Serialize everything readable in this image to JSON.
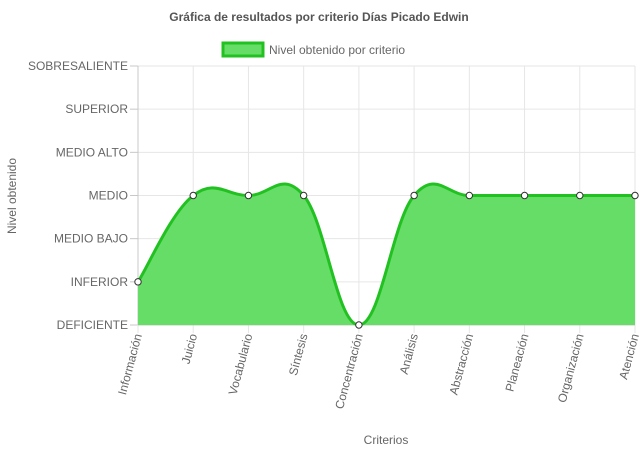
{
  "chart_data": {
    "type": "area",
    "title": "Gráfica de resultados por criterio Días Picado Edwin",
    "xlabel": "Criterios",
    "ylabel": "Nivel obtenido",
    "categories": [
      "Información",
      "Juicio",
      "Vocabulario",
      "Síntesis",
      "Concentración",
      "Análisis",
      "Abstracción",
      "Planeación",
      "Organización",
      "Atención"
    ],
    "y_levels": [
      "DEFICIENTE",
      "INFERIOR",
      "MEDIO BAJO",
      "MEDIO",
      "MEDIO ALTO",
      "SUPERIOR",
      "SOBRESALIENTE"
    ],
    "ylim": [
      0,
      6
    ],
    "grid": true,
    "legend_position": "top",
    "series": [
      {
        "name": "Nivel obtenido por criterio",
        "values": [
          1,
          3,
          3,
          3,
          0,
          3,
          3,
          3,
          3,
          3
        ],
        "fill_color": "#66dd66",
        "line_color": "#22c122"
      }
    ]
  }
}
